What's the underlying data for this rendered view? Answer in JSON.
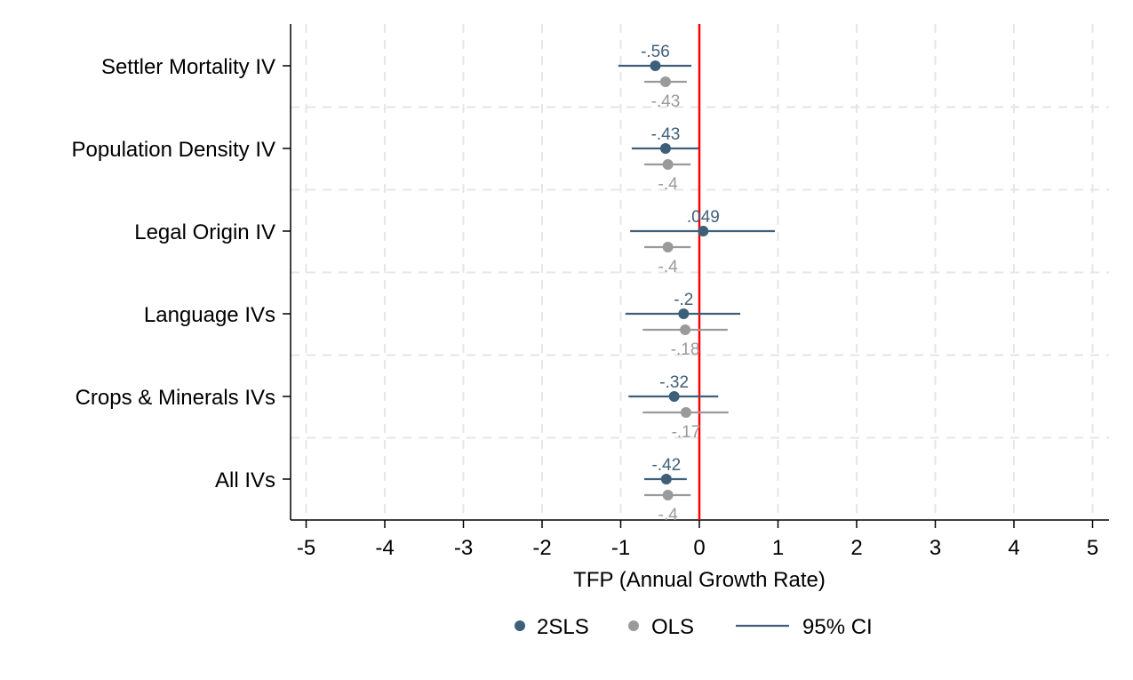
{
  "chart_data": {
    "type": "scatter",
    "subtype": "coefficient-plot",
    "title": "",
    "xlabel": "TFP (Annual Growth Rate)",
    "ylabel": "",
    "xlim": [
      -5.2,
      5.2
    ],
    "xticks": [
      -5,
      -4,
      -3,
      -2,
      -1,
      0,
      1,
      2,
      3,
      4,
      5
    ],
    "reference_line": {
      "x": 0,
      "color": "#ff0000"
    },
    "grid": true,
    "legend_position": "bottom",
    "categories": [
      "Settler Mortality IV",
      "Population Density IV",
      "Legal Origin IV",
      "Language IVs",
      "Crops & Minerals IVs",
      "All IVs"
    ],
    "series": [
      {
        "name": "2SLS",
        "color": "#3e5f7a",
        "estimates": [
          -0.56,
          -0.43,
          0.049,
          -0.2,
          -0.32,
          -0.42
        ],
        "labels": [
          "-.56",
          "-.43",
          ".049",
          "-.2",
          "-.32",
          "-.42"
        ],
        "ci_low": [
          -1.03,
          -0.86,
          -0.88,
          -0.94,
          -0.9,
          -0.7
        ],
        "ci_high": [
          -0.1,
          -0.01,
          0.96,
          0.52,
          0.24,
          -0.16
        ]
      },
      {
        "name": "OLS",
        "color": "#9a9a9a",
        "estimates": [
          -0.43,
          -0.4,
          -0.4,
          -0.18,
          -0.17,
          -0.4
        ],
        "labels": [
          "-.43",
          "-.4",
          "-.4",
          "-.18",
          "-.17",
          "-.4"
        ],
        "ci_low": [
          -0.7,
          -0.7,
          -0.7,
          -0.72,
          -0.72,
          -0.7
        ],
        "ci_high": [
          -0.16,
          -0.11,
          -0.11,
          0.36,
          0.37,
          -0.11
        ]
      }
    ],
    "legend": [
      {
        "label": "2SLS",
        "kind": "dot",
        "color": "#3e5f7a"
      },
      {
        "label": "OLS",
        "kind": "dot",
        "color": "#9a9a9a"
      },
      {
        "label": "95% CI",
        "kind": "line",
        "color": "#3e5f7a"
      }
    ]
  }
}
